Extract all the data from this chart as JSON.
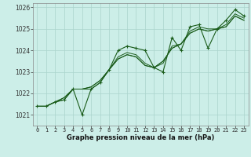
{
  "xlabel": "Graphe pression niveau de la mer (hPa)",
  "bg_color": "#cceee8",
  "grid_color": "#aad4cc",
  "line_color": "#1a5c1a",
  "xlim": [
    -0.5,
    23.5
  ],
  "ylim": [
    1020.5,
    1026.2
  ],
  "yticks": [
    1021,
    1022,
    1023,
    1024,
    1025,
    1026
  ],
  "xticks": [
    0,
    1,
    2,
    3,
    4,
    5,
    6,
    7,
    8,
    9,
    10,
    11,
    12,
    13,
    14,
    15,
    16,
    17,
    18,
    19,
    20,
    21,
    22,
    23
  ],
  "series": [
    [
      1021.4,
      1021.4,
      1021.6,
      1021.7,
      1022.2,
      1021.0,
      1022.2,
      1022.5,
      1023.1,
      1024.0,
      1024.2,
      1024.1,
      1024.0,
      1023.2,
      1023.0,
      1024.6,
      1024.0,
      1025.1,
      1025.2,
      1024.1,
      1025.0,
      1025.4,
      1025.9,
      1025.6
    ],
    [
      1021.4,
      1021.4,
      1021.6,
      1021.7,
      1022.2,
      1022.2,
      1022.2,
      1022.5,
      1023.1,
      1023.7,
      1023.9,
      1023.8,
      1023.4,
      1023.2,
      1023.4,
      1024.2,
      1024.3,
      1024.9,
      1025.1,
      1025.0,
      1025.0,
      1025.2,
      1025.7,
      1025.5
    ],
    [
      1021.4,
      1021.4,
      1021.6,
      1021.8,
      1022.2,
      1022.2,
      1022.3,
      1022.6,
      1023.1,
      1023.6,
      1023.8,
      1023.7,
      1023.3,
      1023.2,
      1023.5,
      1024.1,
      1024.3,
      1024.8,
      1025.0,
      1024.9,
      1025.0,
      1025.1,
      1025.6,
      1025.4
    ],
    [
      1021.4,
      1021.4,
      1021.6,
      1021.8,
      1022.2,
      1022.2,
      1022.3,
      1022.6,
      1023.1,
      1023.6,
      1023.8,
      1023.7,
      1023.3,
      1023.2,
      1023.5,
      1024.1,
      1024.3,
      1024.8,
      1025.0,
      1024.9,
      1025.0,
      1025.1,
      1025.6,
      1025.4
    ]
  ],
  "show_markers": [
    true,
    false,
    false,
    false
  ],
  "tick_fontsize": 5.0,
  "xlabel_fontsize": 6.0
}
